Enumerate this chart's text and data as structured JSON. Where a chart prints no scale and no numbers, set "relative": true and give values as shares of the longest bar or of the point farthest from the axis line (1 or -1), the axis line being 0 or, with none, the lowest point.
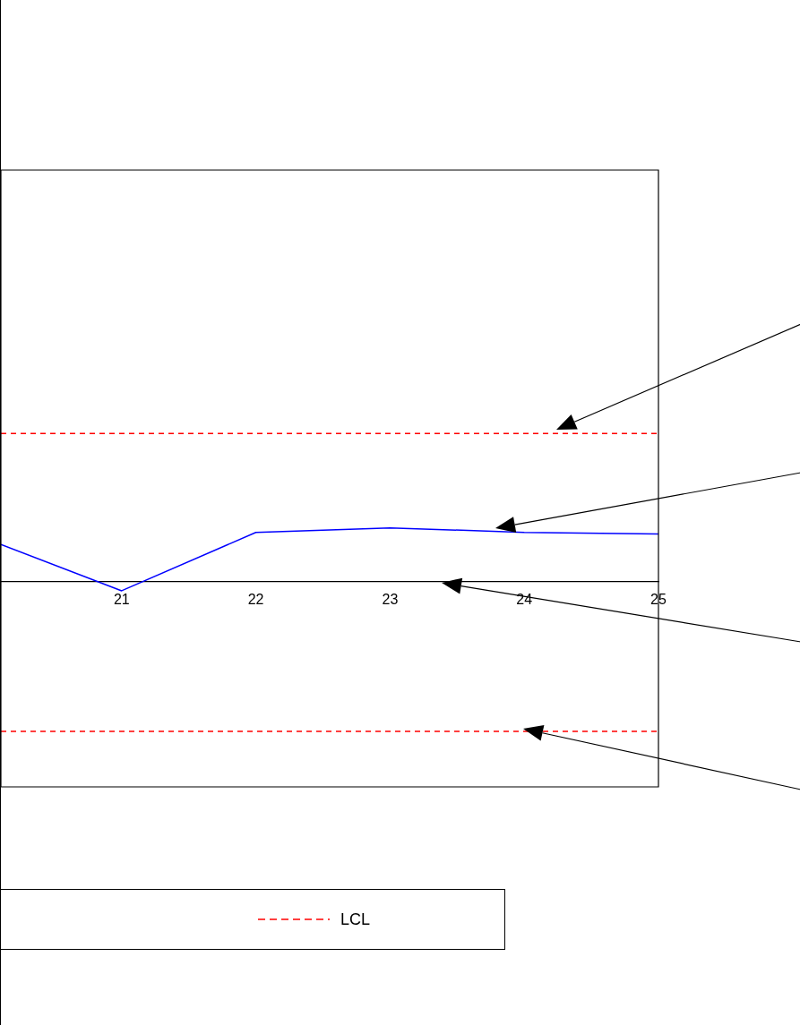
{
  "chart_data": {
    "type": "line",
    "relative": true,
    "x": [
      20.1,
      21,
      22,
      23,
      24,
      25
    ],
    "xlim": [
      20.1,
      25
    ],
    "xticks": [
      21,
      22,
      23,
      24,
      25
    ],
    "tick_labels": "x",
    "grid": false,
    "legend": "bottom",
    "marker": "none",
    "series": [
      {
        "color": "#ff0000",
        "line_style": "dashed",
        "values": [
          0.99,
          0.99,
          0.99,
          0.99,
          0.99,
          0.99
        ]
      },
      {
        "color": "#0000ff",
        "line_style": "solid",
        "values": [
          0.25,
          -0.06,
          0.33,
          0.36,
          0.33,
          0.32
        ]
      },
      {
        "name": "LCL",
        "color": "#ff0000",
        "line_style": "dashed",
        "values": [
          -1,
          -1,
          -1,
          -1,
          -1,
          -1
        ]
      }
    ]
  }
}
